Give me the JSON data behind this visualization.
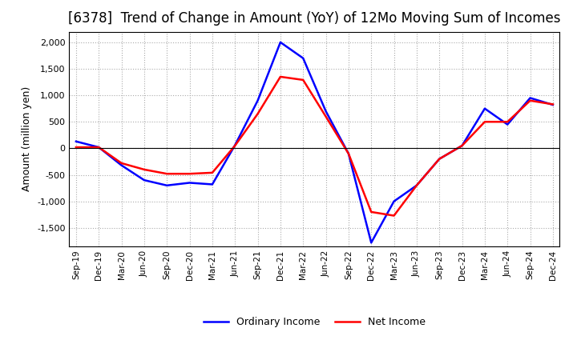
{
  "title": "[6378]  Trend of Change in Amount (YoY) of 12Mo Moving Sum of Incomes",
  "ylabel": "Amount (million yen)",
  "ylim": [
    -1850,
    2200
  ],
  "yticks": [
    -1500,
    -1000,
    -500,
    0,
    500,
    1000,
    1500,
    2000
  ],
  "x_labels": [
    "Sep-19",
    "Dec-19",
    "Mar-20",
    "Jun-20",
    "Sep-20",
    "Dec-20",
    "Mar-21",
    "Jun-21",
    "Sep-21",
    "Dec-21",
    "Mar-22",
    "Jun-22",
    "Sep-22",
    "Dec-22",
    "Mar-23",
    "Jun-23",
    "Sep-23",
    "Dec-23",
    "Mar-24",
    "Jun-24",
    "Sep-24",
    "Dec-24"
  ],
  "ordinary_income": [
    130,
    20,
    -320,
    -600,
    -700,
    -650,
    -680,
    60,
    900,
    2000,
    1700,
    700,
    -100,
    -1780,
    -1000,
    -700,
    -200,
    50,
    750,
    450,
    950,
    820
  ],
  "net_income": [
    20,
    20,
    -280,
    -400,
    -480,
    -480,
    -460,
    50,
    650,
    1350,
    1290,
    600,
    -100,
    -1200,
    -1270,
    -700,
    -200,
    50,
    500,
    500,
    900,
    830
  ],
  "ordinary_color": "#0000FF",
  "net_color": "#FF0000",
  "line_width": 1.8,
  "grid_color": "#aaaaaa",
  "background_color": "#ffffff",
  "title_fontsize": 12,
  "legend_labels": [
    "Ordinary Income",
    "Net Income"
  ]
}
